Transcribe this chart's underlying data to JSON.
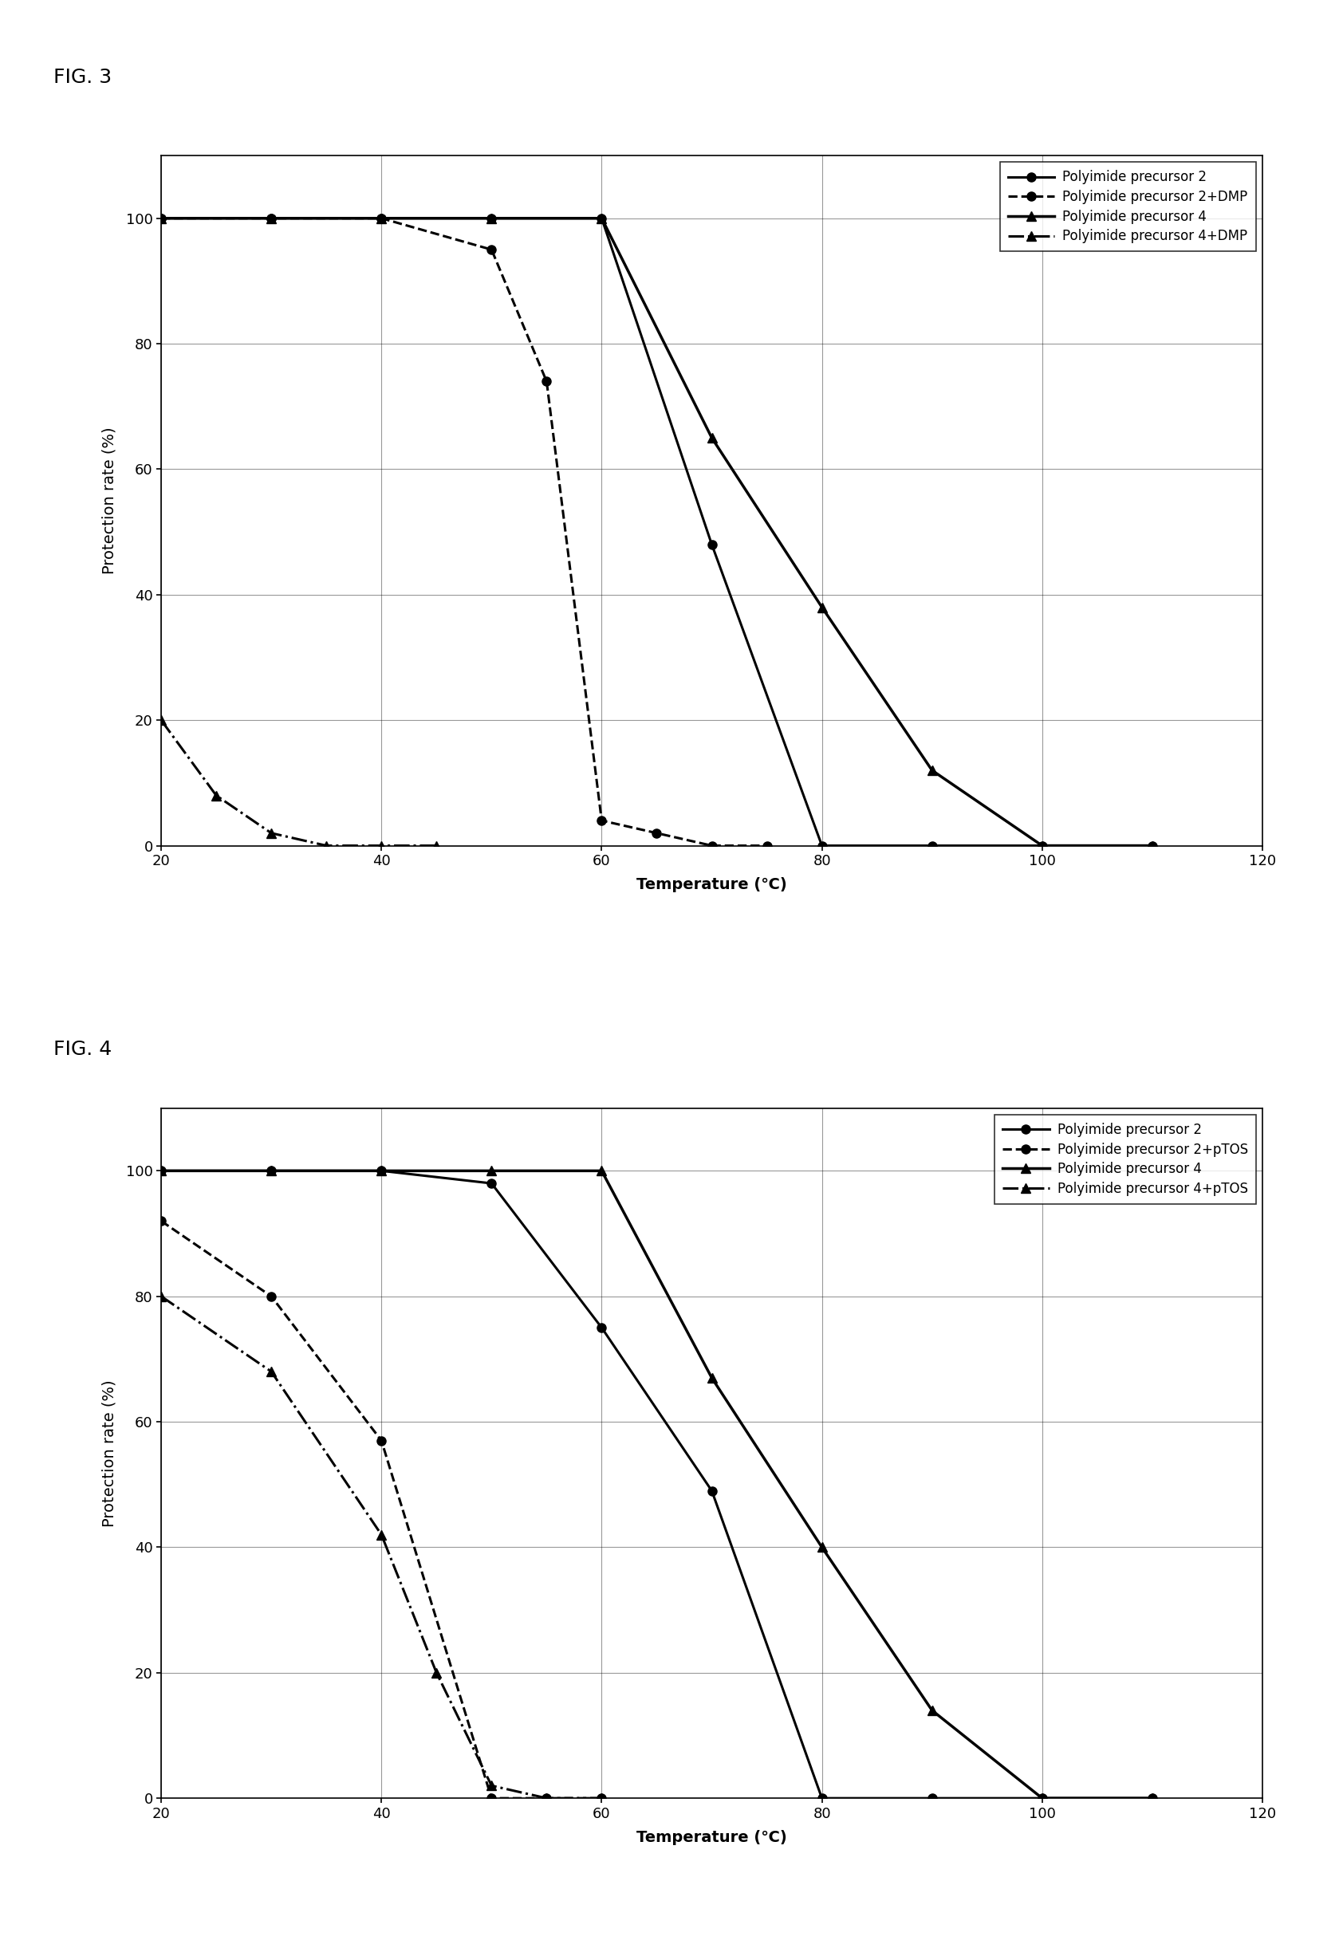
{
  "fig3": {
    "title": "FIG. 3",
    "series": [
      {
        "label": "Polyimide precursor 2",
        "x": [
          20,
          30,
          40,
          50,
          60,
          70,
          80,
          90,
          100,
          110
        ],
        "y": [
          100,
          100,
          100,
          100,
          100,
          48,
          0,
          0,
          0,
          0
        ],
        "color": "black",
        "linestyle": "-",
        "marker": "o",
        "linewidth": 2.2,
        "markersize": 8
      },
      {
        "label": "Polyimide precursor 2+DMP",
        "x": [
          20,
          30,
          40,
          50,
          55,
          60,
          65,
          70,
          75
        ],
        "y": [
          100,
          100,
          100,
          95,
          74,
          4,
          2,
          0,
          0
        ],
        "color": "black",
        "linestyle": "--",
        "marker": "o",
        "linewidth": 2.2,
        "markersize": 8
      },
      {
        "label": "Polyimide precursor 4",
        "x": [
          20,
          30,
          40,
          50,
          60,
          70,
          80,
          90,
          100,
          110
        ],
        "y": [
          100,
          100,
          100,
          100,
          100,
          65,
          38,
          12,
          0,
          0
        ],
        "color": "black",
        "linestyle": "-",
        "marker": "^",
        "linewidth": 2.5,
        "markersize": 9
      },
      {
        "label": "Polyimide precursor 4+DMP",
        "x": [
          20,
          25,
          30,
          35,
          40,
          45
        ],
        "y": [
          20,
          8,
          2,
          0,
          0,
          0
        ],
        "color": "black",
        "linestyle": "-.",
        "marker": "^",
        "linewidth": 2.2,
        "markersize": 9
      }
    ],
    "xlabel": "Temperature (℃)",
    "ylabel": "Protection rate (%)",
    "xlim": [
      20,
      120
    ],
    "ylim": [
      0,
      110
    ],
    "xticks": [
      20,
      40,
      60,
      80,
      100,
      120
    ],
    "yticks": [
      0,
      20,
      40,
      60,
      80,
      100
    ]
  },
  "fig4": {
    "title": "FIG. 4",
    "series": [
      {
        "label": "Polyimide precursor 2",
        "x": [
          20,
          30,
          40,
          50,
          60,
          70,
          80,
          90,
          100,
          110
        ],
        "y": [
          100,
          100,
          100,
          98,
          75,
          49,
          0,
          0,
          0,
          0
        ],
        "color": "black",
        "linestyle": "-",
        "marker": "o",
        "linewidth": 2.2,
        "markersize": 8
      },
      {
        "label": "Polyimide precursor 2+pTOS",
        "x": [
          20,
          30,
          40,
          50,
          55,
          60
        ],
        "y": [
          92,
          80,
          57,
          0,
          0,
          0
        ],
        "color": "black",
        "linestyle": "--",
        "marker": "o",
        "linewidth": 2.2,
        "markersize": 8
      },
      {
        "label": "Polyimide precursor 4",
        "x": [
          20,
          30,
          40,
          50,
          60,
          70,
          80,
          90,
          100,
          110
        ],
        "y": [
          100,
          100,
          100,
          100,
          100,
          67,
          40,
          14,
          0,
          0
        ],
        "color": "black",
        "linestyle": "-",
        "marker": "^",
        "linewidth": 2.5,
        "markersize": 9
      },
      {
        "label": "Polyimide precursor 4+pTOS",
        "x": [
          20,
          30,
          40,
          45,
          50,
          55,
          60
        ],
        "y": [
          80,
          68,
          42,
          20,
          2,
          0,
          0
        ],
        "color": "black",
        "linestyle": "-.",
        "marker": "^",
        "linewidth": 2.2,
        "markersize": 9
      }
    ],
    "xlabel": "Temperature (℃)",
    "ylabel": "Protection rate (%)",
    "xlim": [
      20,
      120
    ],
    "ylim": [
      0,
      110
    ],
    "xticks": [
      20,
      40,
      60,
      80,
      100,
      120
    ],
    "yticks": [
      0,
      20,
      40,
      60,
      80,
      100
    ]
  },
  "background_color": "#ffffff",
  "fig_label_fontsize": 18,
  "axis_label_fontsize": 14,
  "tick_fontsize": 13,
  "legend_fontsize": 12
}
